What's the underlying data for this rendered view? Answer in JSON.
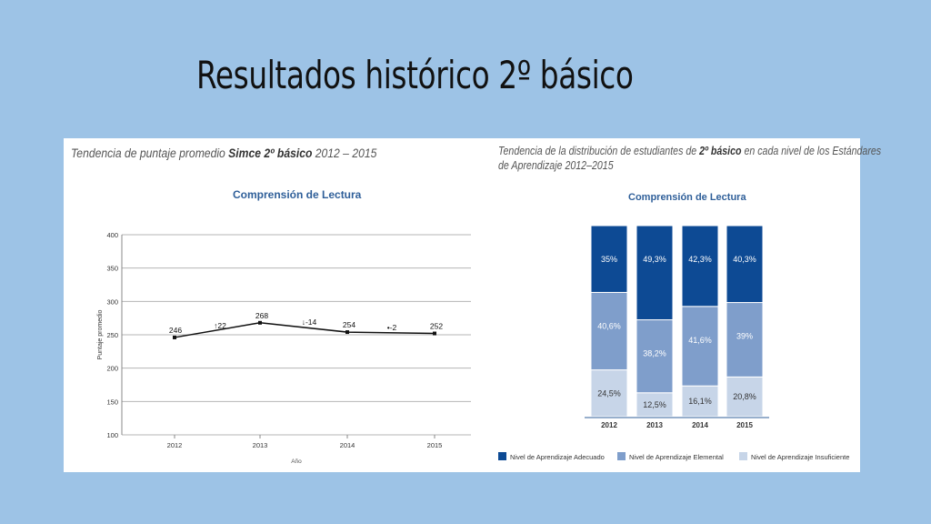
{
  "slide": {
    "title": "Resultados histórico 2º básico"
  },
  "left": {
    "title_parts": [
      "Tendencia de puntaje promedio ",
      "Simce 2º básico",
      " 2012 – 2015"
    ],
    "subtitle": "Comprensión de Lectura"
  },
  "right": {
    "title_line1_parts": [
      "Tendencia de la distribución de estudiantes de ",
      "2º básico",
      " en cada nivel de los Estándares"
    ],
    "title_line2": "de Aprendizaje 2012–2015",
    "subtitle": "Comprensión de Lectura"
  },
  "colors": {
    "adecuado": "#0d4a94",
    "elemental": "#7f9ecb",
    "insuficiente": "#c7d5e8",
    "line": "#111111",
    "grid": "#b5b5b5"
  },
  "chart_data": [
    {
      "type": "line",
      "x": [
        "2012",
        "2013",
        "2014",
        "2015"
      ],
      "series": [
        {
          "values": [
            246,
            268,
            254,
            252
          ]
        }
      ],
      "data_labels": [
        "246",
        "268",
        "254",
        "252"
      ],
      "change_labels": [
        "↑22",
        "↓-14",
        "•-2"
      ],
      "xlabel": "Año",
      "ylabel": "Puntaje promedio",
      "ylim": [
        100,
        400
      ],
      "yticks": [
        "100",
        "150",
        "200",
        "250",
        "300",
        "350",
        "400"
      ],
      "grid": true
    },
    {
      "type": "bar",
      "stacked": true,
      "categories": [
        "2012",
        "2013",
        "2014",
        "2015"
      ],
      "series": [
        {
          "name": "Nivel de Aprendizaje Insuficiente",
          "values": [
            24.5,
            12.5,
            16.1,
            20.8
          ],
          "labels": [
            "24,5%",
            "12,5%",
            "16,1%",
            "20,8%"
          ],
          "color": "#c7d5e8"
        },
        {
          "name": "Nivel de Aprendizaje Elemental",
          "values": [
            40.6,
            38.2,
            41.6,
            39
          ],
          "labels": [
            "40,6%",
            "38,2%",
            "41,6%",
            "39%"
          ],
          "color": "#7f9ecb"
        },
        {
          "name": "Nivel de Aprendizaje Adecuado",
          "values": [
            35,
            49.3,
            42.3,
            40.3
          ],
          "labels": [
            "35%",
            "49,3%",
            "42,3%",
            "40,3%"
          ],
          "color": "#0d4a94"
        }
      ],
      "legend": [
        "Nivel de Aprendizaje Adecuado",
        "Nivel de Aprendizaje Elemental",
        "Nivel de Aprendizaje Insuficiente"
      ],
      "legend_position": "bottom",
      "ylim": [
        0,
        100
      ]
    }
  ]
}
